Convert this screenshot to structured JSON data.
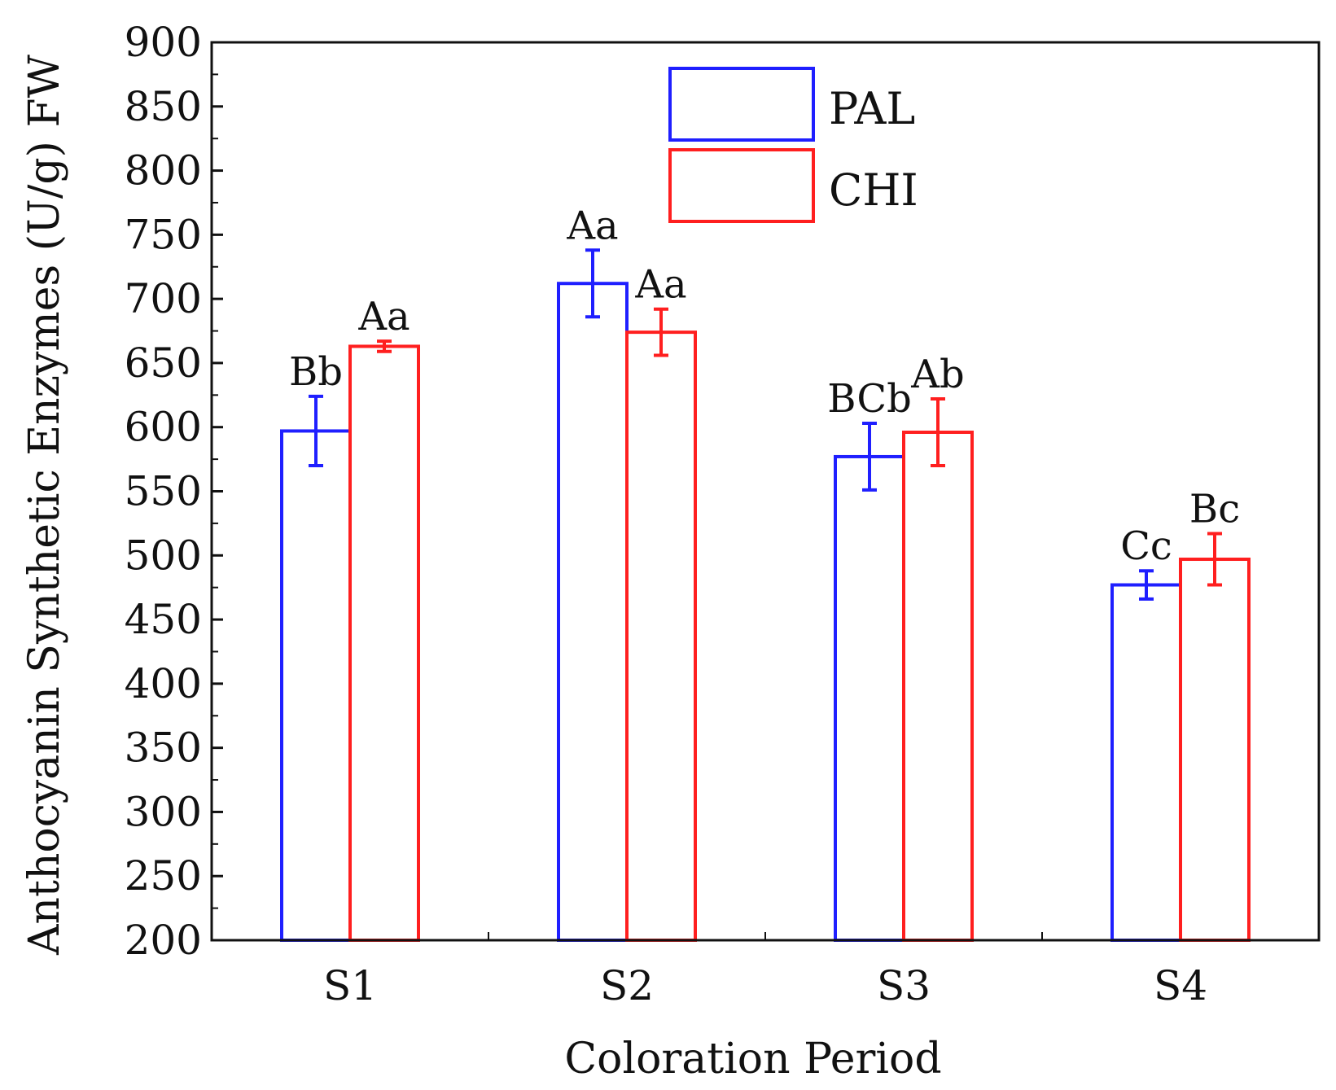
{
  "chart_data": {
    "type": "bar",
    "xlabel": "Coloration Period",
    "ylabel": "Anthocyanin Synthetic Enzymes (U/g) FW",
    "ylim": [
      200,
      900
    ],
    "yticks": [
      200,
      250,
      300,
      350,
      400,
      450,
      500,
      550,
      600,
      650,
      700,
      750,
      800,
      850,
      900
    ],
    "categories": [
      "S1",
      "S2",
      "S3",
      "S4"
    ],
    "series": [
      {
        "name": "PAL",
        "color": "#1f1fff",
        "values": [
          597,
          712,
          577,
          477
        ],
        "errors": [
          27,
          26,
          26,
          11
        ],
        "labels": [
          "Bb",
          "Aa",
          "BCb",
          "Cc"
        ]
      },
      {
        "name": "CHI",
        "color": "#ff1f1f",
        "values": [
          663,
          674,
          596,
          497
        ],
        "errors": [
          4,
          18,
          26,
          20
        ],
        "labels": [
          "Aa",
          "Aa",
          "Ab",
          "Bc"
        ]
      }
    ],
    "legend_position": "top-center",
    "grid": false
  }
}
